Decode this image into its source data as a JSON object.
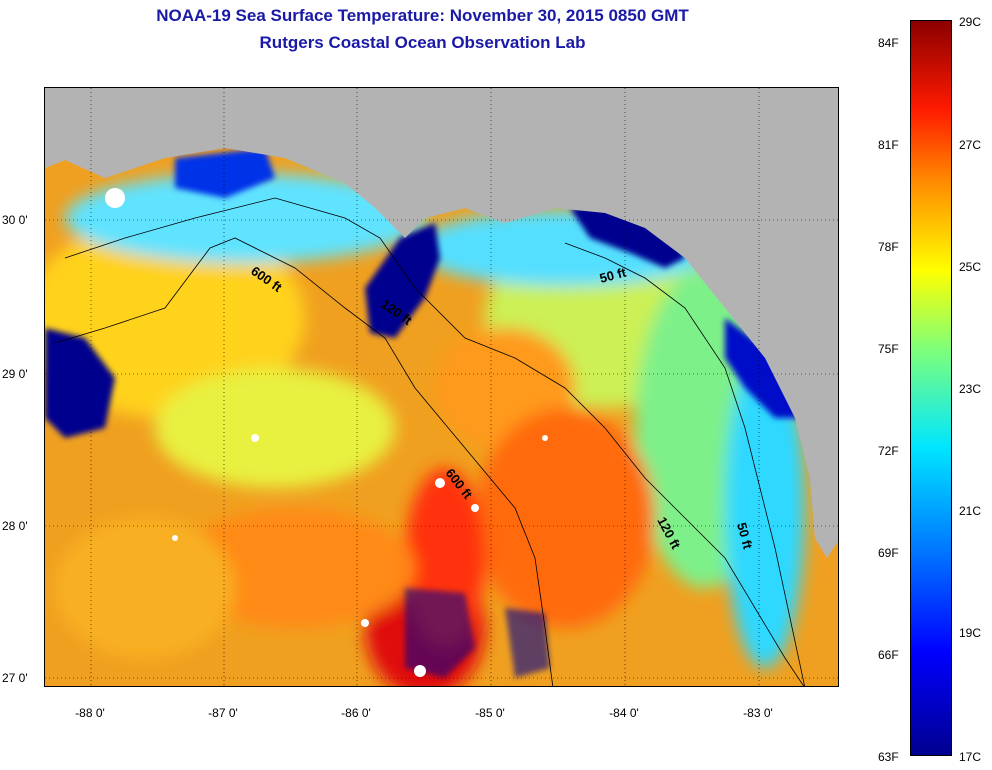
{
  "title": {
    "line1": "NOAA-19 Sea Surface Temperature:  November 30, 2015 0850 GMT",
    "line2": "Rutgers Coastal Ocean Observation Lab"
  },
  "latitude_labels": [
    {
      "value": 30,
      "text": "30 0'"
    },
    {
      "value": 29,
      "text": "29 0'"
    },
    {
      "value": 28,
      "text": "28 0'"
    },
    {
      "value": 27,
      "text": "27 0'"
    }
  ],
  "longitude_labels": [
    {
      "value": -88,
      "text": "-88 0'"
    },
    {
      "value": -87,
      "text": "-87 0'"
    },
    {
      "value": -86,
      "text": "-86 0'"
    },
    {
      "value": -85,
      "text": "-85 0'"
    },
    {
      "value": -84,
      "text": "-84 0'"
    },
    {
      "value": -83,
      "text": "-83 0'"
    }
  ],
  "contour_labels": [
    "600 ft",
    "120 ft",
    "50 ft",
    "600 ft",
    "120 ft",
    "50 ft"
  ],
  "colorbar": {
    "fahrenheit_labels": [
      "84F",
      "81F",
      "78F",
      "75F",
      "72F",
      "69F",
      "66F",
      "63F"
    ],
    "celsius_labels": [
      "29C",
      "27C",
      "25C",
      "23C",
      "21C",
      "19C",
      "17C"
    ],
    "min_celsius": 17,
    "max_celsius": 29
  },
  "colors": {
    "land": "#b3b3b3",
    "title": "#1a1aa6",
    "cold": "#00008f",
    "warm": "#8b0000",
    "cloud": "#ffffff"
  }
}
